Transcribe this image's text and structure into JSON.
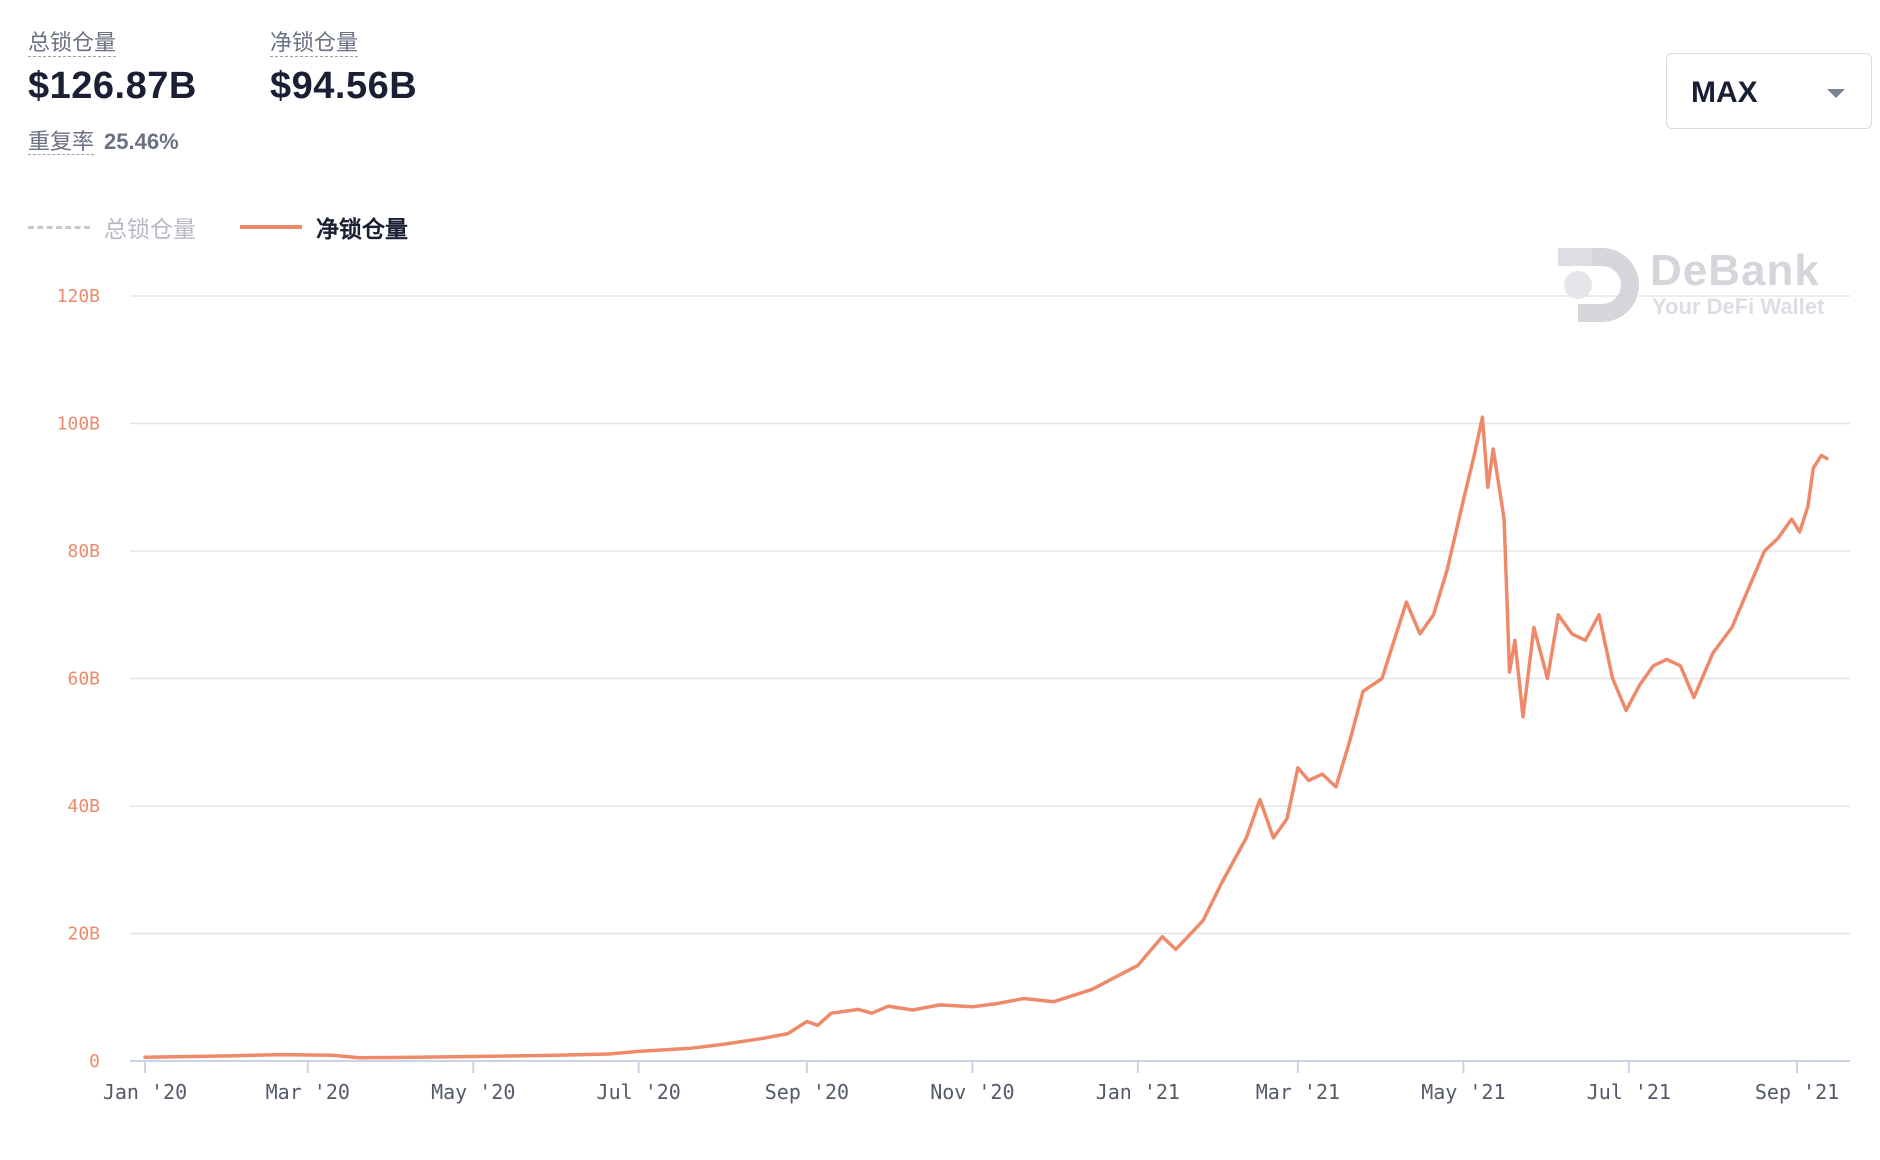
{
  "stats": {
    "total": {
      "label": "总锁仓量",
      "value": "$126.87B"
    },
    "net": {
      "label": "净锁仓量",
      "value": "$94.56B"
    },
    "repeat_rate": {
      "label": "重复率",
      "value": "25.46%"
    }
  },
  "range_selector": {
    "value": "MAX"
  },
  "watermark": {
    "brand": "DeBank",
    "slogan": "Your DeFi Wallet"
  },
  "colors": {
    "net": "#ee8a6a",
    "total": "#c8cad1",
    "grid": "#e3e5ea",
    "axis": "#c9d3e3"
  },
  "legend": [
    {
      "name": "总锁仓量",
      "style": "dashed",
      "active": false
    },
    {
      "name": "净锁仓量",
      "style": "solid",
      "active": true
    }
  ],
  "chart_data": {
    "type": "line",
    "y_unit": "B",
    "ylim": [
      0,
      120
    ],
    "y_ticks": [
      {
        "value": 0,
        "label": "0"
      },
      {
        "value": 20,
        "label": "20B"
      },
      {
        "value": 40,
        "label": "40B"
      },
      {
        "value": 60,
        "label": "60B"
      },
      {
        "value": 80,
        "label": "80B"
      },
      {
        "value": 100,
        "label": "100B"
      },
      {
        "value": 120,
        "label": "120B"
      }
    ],
    "xlim": [
      "2020-01-01",
      "2021-09-15"
    ],
    "x_ticks": [
      {
        "date": "2020-01-01",
        "label": "Jan '20"
      },
      {
        "date": "2020-03-01",
        "label": "Mar '20"
      },
      {
        "date": "2020-05-01",
        "label": "May '20"
      },
      {
        "date": "2020-07-01",
        "label": "Jul '20"
      },
      {
        "date": "2020-09-01",
        "label": "Sep '20"
      },
      {
        "date": "2020-11-01",
        "label": "Nov '20"
      },
      {
        "date": "2021-01-01",
        "label": "Jan '21"
      },
      {
        "date": "2021-03-01",
        "label": "Mar '21"
      },
      {
        "date": "2021-05-01",
        "label": "May '21"
      },
      {
        "date": "2021-07-01",
        "label": "Jul '21"
      },
      {
        "date": "2021-09-01",
        "label": "Sep '21"
      }
    ],
    "grid": true,
    "legend_position": "top-left",
    "series": [
      {
        "name": "净锁仓量",
        "points": [
          [
            "2020-01-01",
            0.6
          ],
          [
            "2020-02-01",
            0.8
          ],
          [
            "2020-02-20",
            1.0
          ],
          [
            "2020-03-10",
            0.9
          ],
          [
            "2020-03-20",
            0.5
          ],
          [
            "2020-04-10",
            0.6
          ],
          [
            "2020-05-01",
            0.7
          ],
          [
            "2020-06-01",
            0.9
          ],
          [
            "2020-06-20",
            1.1
          ],
          [
            "2020-07-01",
            1.5
          ],
          [
            "2020-07-20",
            2.0
          ],
          [
            "2020-08-01",
            2.6
          ],
          [
            "2020-08-15",
            3.5
          ],
          [
            "2020-08-25",
            4.3
          ],
          [
            "2020-09-01",
            6.2
          ],
          [
            "2020-09-05",
            5.6
          ],
          [
            "2020-09-10",
            7.5
          ],
          [
            "2020-09-20",
            8.1
          ],
          [
            "2020-09-25",
            7.5
          ],
          [
            "2020-10-01",
            8.6
          ],
          [
            "2020-10-10",
            8.0
          ],
          [
            "2020-10-20",
            8.8
          ],
          [
            "2020-11-01",
            8.5
          ],
          [
            "2020-11-10",
            9.0
          ],
          [
            "2020-11-20",
            9.8
          ],
          [
            "2020-12-01",
            9.3
          ],
          [
            "2020-12-15",
            11.2
          ],
          [
            "2021-01-01",
            15.0
          ],
          [
            "2021-01-10",
            19.5
          ],
          [
            "2021-01-15",
            17.5
          ],
          [
            "2021-01-25",
            22.0
          ],
          [
            "2021-02-01",
            28.0
          ],
          [
            "2021-02-10",
            35.0
          ],
          [
            "2021-02-15",
            41.0
          ],
          [
            "2021-02-20",
            35.0
          ],
          [
            "2021-02-25",
            38.0
          ],
          [
            "2021-03-01",
            46.0
          ],
          [
            "2021-03-05",
            44.0
          ],
          [
            "2021-03-10",
            45.0
          ],
          [
            "2021-03-15",
            43.0
          ],
          [
            "2021-03-20",
            50.0
          ],
          [
            "2021-03-25",
            58.0
          ],
          [
            "2021-04-01",
            60.0
          ],
          [
            "2021-04-10",
            72.0
          ],
          [
            "2021-04-15",
            67.0
          ],
          [
            "2021-04-20",
            70.0
          ],
          [
            "2021-04-25",
            77.0
          ],
          [
            "2021-05-01",
            88.0
          ],
          [
            "2021-05-05",
            95.0
          ],
          [
            "2021-05-08",
            101.0
          ],
          [
            "2021-05-10",
            90.0
          ],
          [
            "2021-05-12",
            96.0
          ],
          [
            "2021-05-16",
            85.0
          ],
          [
            "2021-05-18",
            61.0
          ],
          [
            "2021-05-20",
            66.0
          ],
          [
            "2021-05-23",
            54.0
          ],
          [
            "2021-05-27",
            68.0
          ],
          [
            "2021-06-01",
            60.0
          ],
          [
            "2021-06-05",
            70.0
          ],
          [
            "2021-06-10",
            67.0
          ],
          [
            "2021-06-15",
            66.0
          ],
          [
            "2021-06-20",
            70.0
          ],
          [
            "2021-06-25",
            60.0
          ],
          [
            "2021-06-30",
            55.0
          ],
          [
            "2021-07-05",
            59.0
          ],
          [
            "2021-07-10",
            62.0
          ],
          [
            "2021-07-15",
            63.0
          ],
          [
            "2021-07-20",
            62.0
          ],
          [
            "2021-07-25",
            57.0
          ],
          [
            "2021-08-01",
            64.0
          ],
          [
            "2021-08-08",
            68.0
          ],
          [
            "2021-08-15",
            75.0
          ],
          [
            "2021-08-20",
            80.0
          ],
          [
            "2021-08-25",
            82.0
          ],
          [
            "2021-08-30",
            85.0
          ],
          [
            "2021-09-02",
            83.0
          ],
          [
            "2021-09-05",
            87.0
          ],
          [
            "2021-09-07",
            93.0
          ],
          [
            "2021-09-10",
            95.0
          ],
          [
            "2021-09-12",
            94.5
          ]
        ]
      }
    ]
  }
}
